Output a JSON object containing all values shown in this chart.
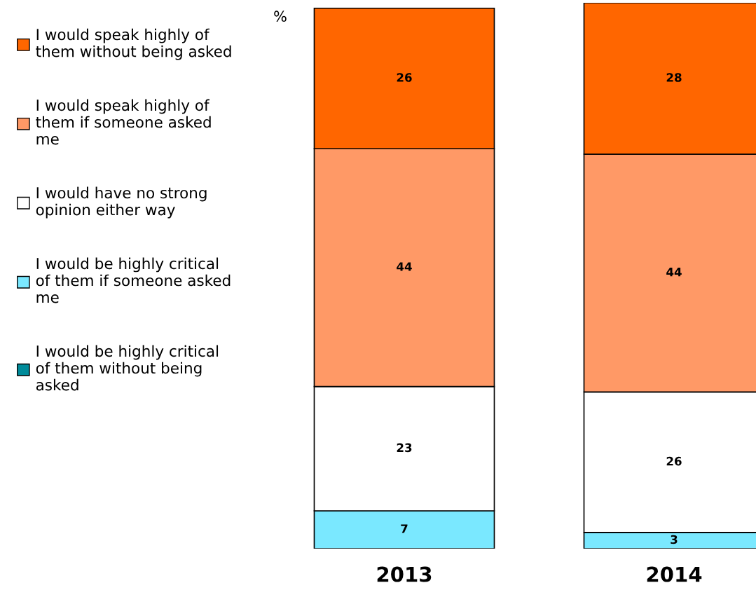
{
  "chart_data": {
    "type": "bar",
    "stacked": true,
    "ylabel": "%",
    "categories": [
      "2013",
      "2014"
    ],
    "series": [
      {
        "name": "I would be highly critical\nof them without being\nasked",
        "color": "#008b9a",
        "values": [
          0,
          0
        ],
        "value_labels": [
          null,
          null
        ]
      },
      {
        "name": "I would be highly critical\nof them if someone asked\nme",
        "color": "#7ae8ff",
        "values": [
          7,
          3
        ],
        "value_labels": [
          "7",
          "3"
        ]
      },
      {
        "name": "I would have no strong\nopinion either way",
        "color": "#ffffff",
        "values": [
          23,
          26
        ],
        "value_labels": [
          "23",
          "26"
        ]
      },
      {
        "name": "I would speak highly of\nthem if someone asked\nme",
        "color": "#ff9966",
        "values": [
          44,
          44
        ],
        "value_labels": [
          "44",
          "44"
        ]
      },
      {
        "name": "I would speak highly of\nthem without being asked",
        "color": "#ff6600",
        "values": [
          26,
          28
        ],
        "value_labels": [
          "26",
          "28"
        ]
      }
    ],
    "ylim": [
      0,
      101
    ],
    "tick_labels": "x",
    "legend": "left",
    "grid": false
  }
}
